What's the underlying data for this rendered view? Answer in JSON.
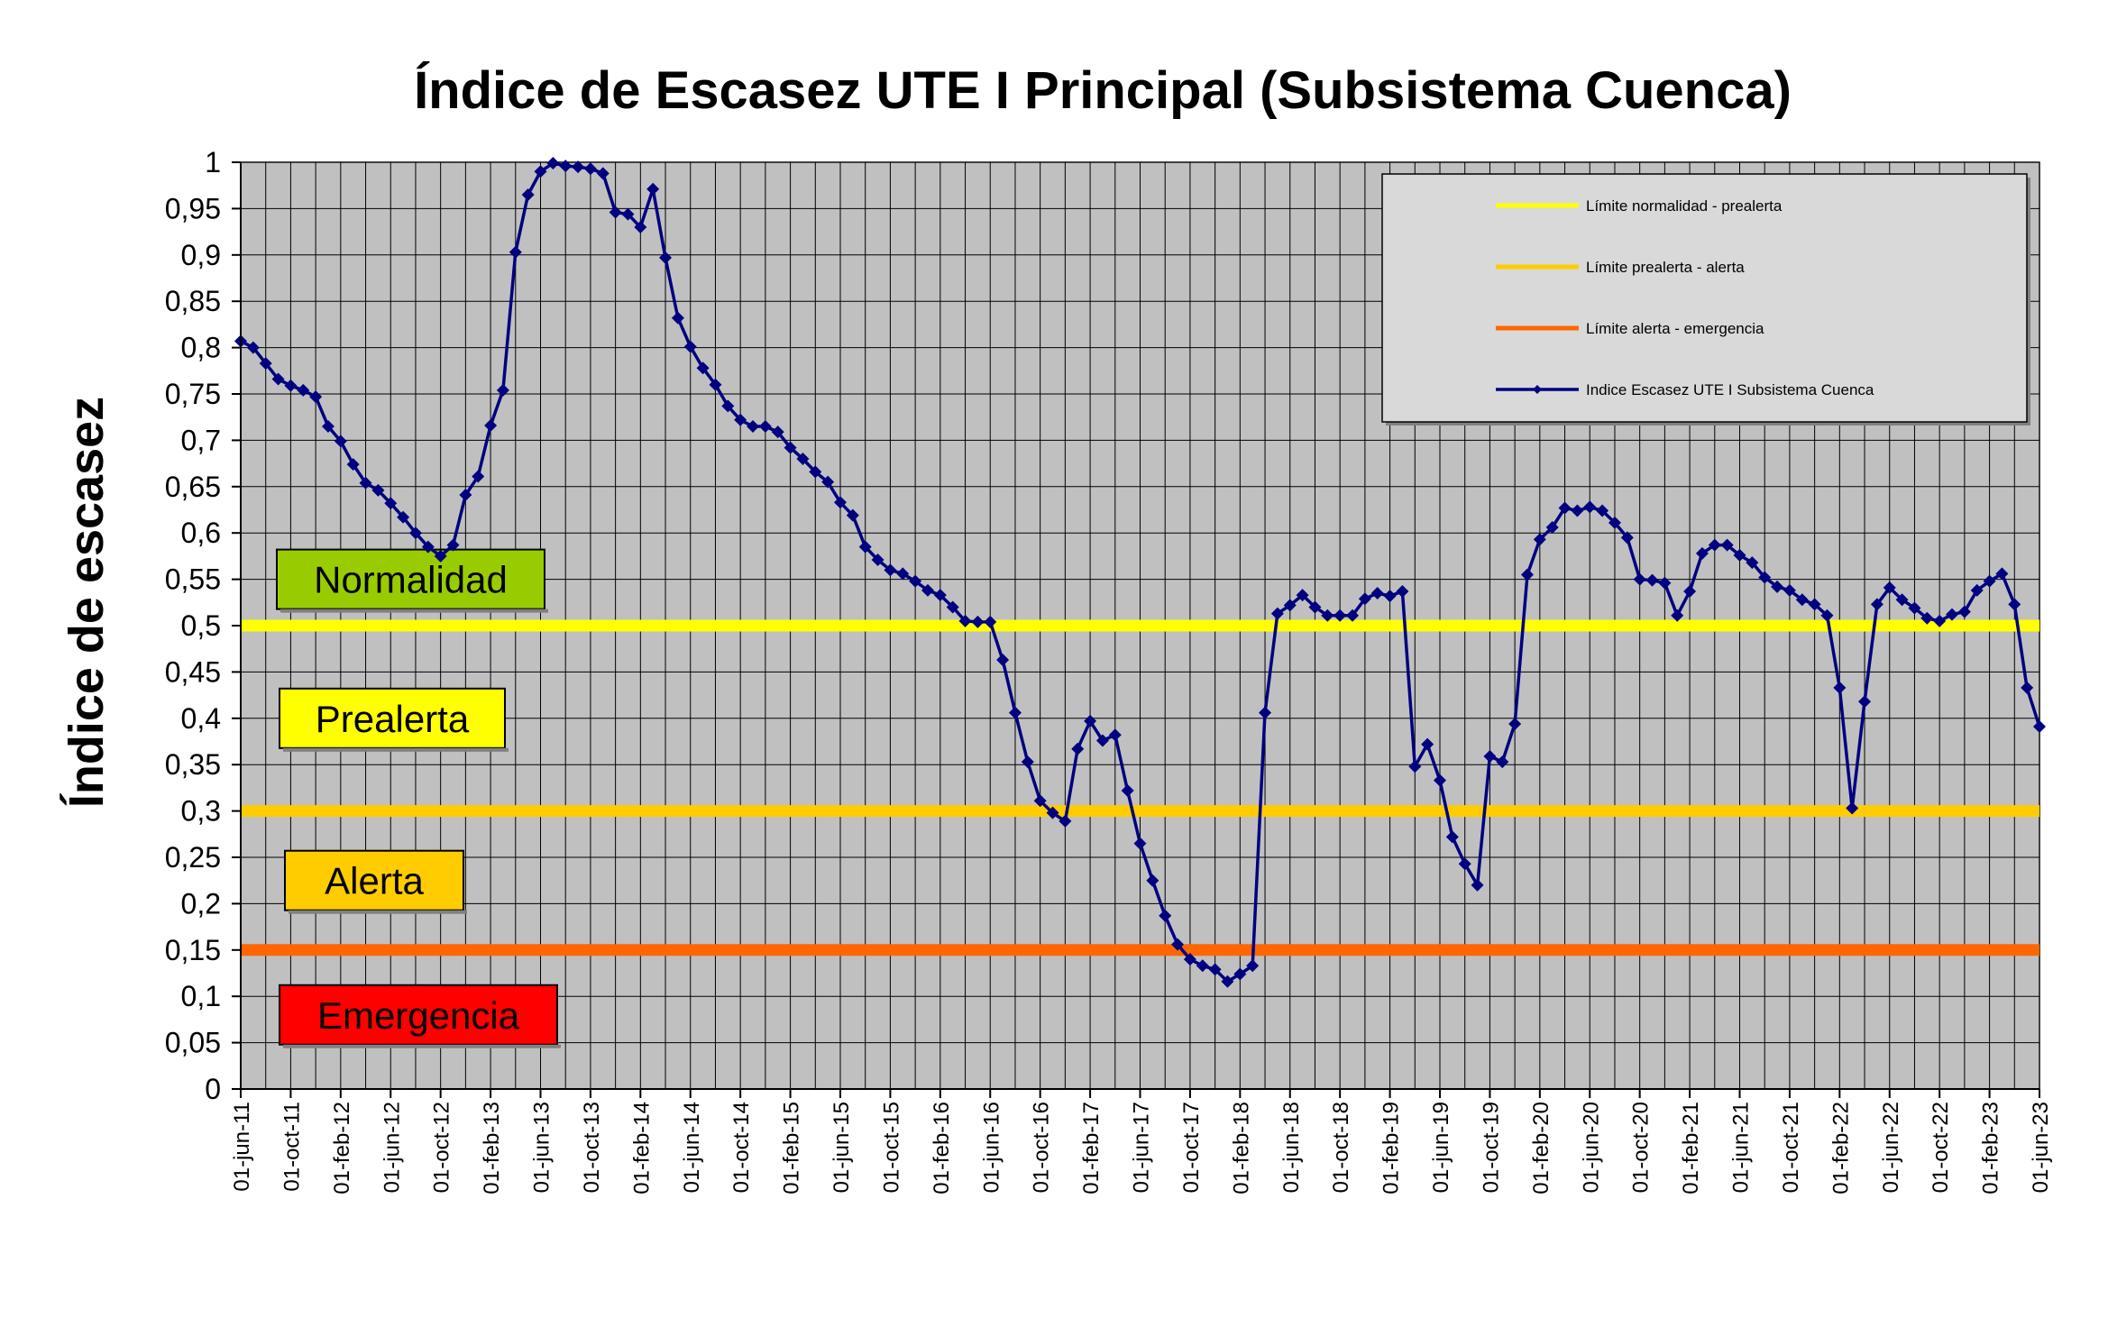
{
  "chart_data": {
    "type": "line",
    "title": "Índice de Escasez UTE I Principal (Subsistema Cuenca)",
    "xlabel": "",
    "ylabel": "Índice de escasez",
    "ylim": [
      0,
      1
    ],
    "yticks": [
      "0",
      "0,05",
      "0,1",
      "0,15",
      "0,2",
      "0,25",
      "0,3",
      "0,35",
      "0,4",
      "0,45",
      "0,5",
      "0,55",
      "0,6",
      "0,65",
      "0,7",
      "0,75",
      "0,8",
      "0,85",
      "0,9",
      "0,95",
      "1"
    ],
    "x_tick_labels": [
      "01-jun-11",
      "01-oct-11",
      "01-feb-12",
      "01-jun-12",
      "01-oct-12",
      "01-feb-13",
      "01-jun-13",
      "01-oct-13",
      "01-feb-14",
      "01-jun-14",
      "01-oct-14",
      "01-feb-15",
      "01-jun-15",
      "01-oct-15",
      "01-feb-16",
      "01-jun-16",
      "01-oct-16",
      "01-feb-17",
      "01-jun-17",
      "01-oct-17",
      "01-feb-18",
      "01-jun-18",
      "01-oct-18",
      "01-feb-19",
      "01-jun-19",
      "01-oct-19",
      "01-feb-20",
      "01-jun-20",
      "01-oct-20",
      "01-feb-21",
      "01-jun-21",
      "01-oct-21",
      "01-feb-22",
      "01-jun-22",
      "01-oct-22",
      "01-feb-23",
      "01-jun-23"
    ],
    "x_range": [
      "2011-06",
      "2023-06"
    ],
    "grid": true,
    "plot_background": "#c0c0c0",
    "legend_position": "top-right",
    "thresholds": [
      {
        "name": "Límite normalidad - prealerta",
        "value": 0.5,
        "color": "#ffff00"
      },
      {
        "name": "Límite prealerta - alerta",
        "value": 0.3,
        "color": "#ffcc00"
      },
      {
        "name": "Límite alerta - emergencia",
        "value": 0.15,
        "color": "#ff6600"
      }
    ],
    "zones": [
      {
        "label": "Normalidad",
        "color": "#99cc00",
        "level": 0.55
      },
      {
        "label": "Prealerta",
        "color": "#ffff00",
        "level": 0.4
      },
      {
        "label": "Alerta",
        "color": "#ffcc00",
        "level": 0.225
      },
      {
        "label": "Emergencia",
        "color": "#ff0000",
        "level": 0.08
      }
    ],
    "series": [
      {
        "name": "Indice Escasez UTE I Subsistema Cuenca",
        "color": "#000080",
        "x": [
          "2011-06",
          "2011-07",
          "2011-08",
          "2011-09",
          "2011-10",
          "2011-11",
          "2011-12",
          "2012-01",
          "2012-02",
          "2012-03",
          "2012-04",
          "2012-05",
          "2012-06",
          "2012-07",
          "2012-08",
          "2012-09",
          "2012-10",
          "2012-11",
          "2012-12",
          "2013-01",
          "2013-02",
          "2013-03",
          "2013-04",
          "2013-05",
          "2013-06",
          "2013-07",
          "2013-08",
          "2013-09",
          "2013-10",
          "2013-11",
          "2013-12",
          "2014-01",
          "2014-02",
          "2014-03",
          "2014-04",
          "2014-05",
          "2014-06",
          "2014-07",
          "2014-08",
          "2014-09",
          "2014-10",
          "2014-11",
          "2014-12",
          "2015-01",
          "2015-02",
          "2015-03",
          "2015-04",
          "2015-05",
          "2015-06",
          "2015-07",
          "2015-08",
          "2015-09",
          "2015-10",
          "2015-11",
          "2015-12",
          "2016-01",
          "2016-02",
          "2016-03",
          "2016-04",
          "2016-05",
          "2016-06",
          "2016-07",
          "2016-08",
          "2016-09",
          "2016-10",
          "2016-11",
          "2016-12",
          "2017-01",
          "2017-02",
          "2017-03",
          "2017-04",
          "2017-05",
          "2017-06",
          "2017-07",
          "2017-08",
          "2017-09",
          "2017-10",
          "2017-11",
          "2017-12",
          "2018-01",
          "2018-02",
          "2018-03",
          "2018-04",
          "2018-05",
          "2018-06",
          "2018-07",
          "2018-08",
          "2018-09",
          "2018-10",
          "2018-11",
          "2018-12",
          "2019-01",
          "2019-02",
          "2019-03",
          "2019-04",
          "2019-05",
          "2019-06",
          "2019-07",
          "2019-08",
          "2019-09",
          "2019-10",
          "2019-11",
          "2019-12",
          "2020-01",
          "2020-02",
          "2020-03",
          "2020-04",
          "2020-05",
          "2020-06",
          "2020-07",
          "2020-08",
          "2020-09",
          "2020-10",
          "2020-11",
          "2020-12",
          "2021-01",
          "2021-02",
          "2021-03",
          "2021-04",
          "2021-05",
          "2021-06",
          "2021-07",
          "2021-08",
          "2021-09",
          "2021-10",
          "2021-11",
          "2021-12",
          "2022-01",
          "2022-02",
          "2022-03",
          "2022-04",
          "2022-05",
          "2022-06",
          "2022-07",
          "2022-08",
          "2022-09",
          "2022-10",
          "2022-11",
          "2022-12",
          "2023-01",
          "2023-02",
          "2023-03",
          "2023-04",
          "2023-05",
          "2023-06"
        ],
        "values": [
          0.807,
          0.8,
          0.783,
          0.766,
          0.759,
          0.754,
          0.747,
          0.715,
          0.699,
          0.674,
          0.654,
          0.646,
          0.632,
          0.617,
          0.6,
          0.585,
          0.575,
          0.587,
          0.641,
          0.661,
          0.716,
          0.754,
          0.903,
          0.965,
          0.99,
          0.999,
          0.996,
          0.995,
          0.993,
          0.988,
          0.946,
          0.944,
          0.93,
          0.971,
          0.897,
          0.832,
          0.801,
          0.778,
          0.76,
          0.737,
          0.722,
          0.715,
          0.715,
          0.709,
          0.692,
          0.68,
          0.666,
          0.655,
          0.633,
          0.619,
          0.585,
          0.571,
          0.56,
          0.556,
          0.548,
          0.538,
          0.533,
          0.52,
          0.505,
          0.504,
          0.504,
          0.463,
          0.406,
          0.353,
          0.311,
          0.298,
          0.289,
          0.367,
          0.397,
          0.376,
          0.382,
          0.322,
          0.265,
          0.225,
          0.187,
          0.156,
          0.14,
          0.133,
          0.129,
          0.116,
          0.124,
          0.133,
          0.406,
          0.513,
          0.522,
          0.533,
          0.52,
          0.511,
          0.511,
          0.511,
          0.529,
          0.535,
          0.532,
          0.537,
          0.348,
          0.372,
          0.333,
          0.272,
          0.243,
          0.22,
          0.359,
          0.353,
          0.394,
          0.555,
          0.593,
          0.606,
          0.627,
          0.624,
          0.628,
          0.624,
          0.611,
          0.595,
          0.55,
          0.549,
          0.546,
          0.511,
          0.537,
          0.578,
          0.587,
          0.587,
          0.576,
          0.568,
          0.552,
          0.542,
          0.538,
          0.528,
          0.523,
          0.511,
          0.433,
          0.303,
          0.418,
          0.523,
          0.541,
          0.528,
          0.519,
          0.508,
          0.505,
          0.512,
          0.515,
          0.538,
          0.548,
          0.556,
          0.523,
          0.433,
          0.391
        ]
      }
    ]
  }
}
